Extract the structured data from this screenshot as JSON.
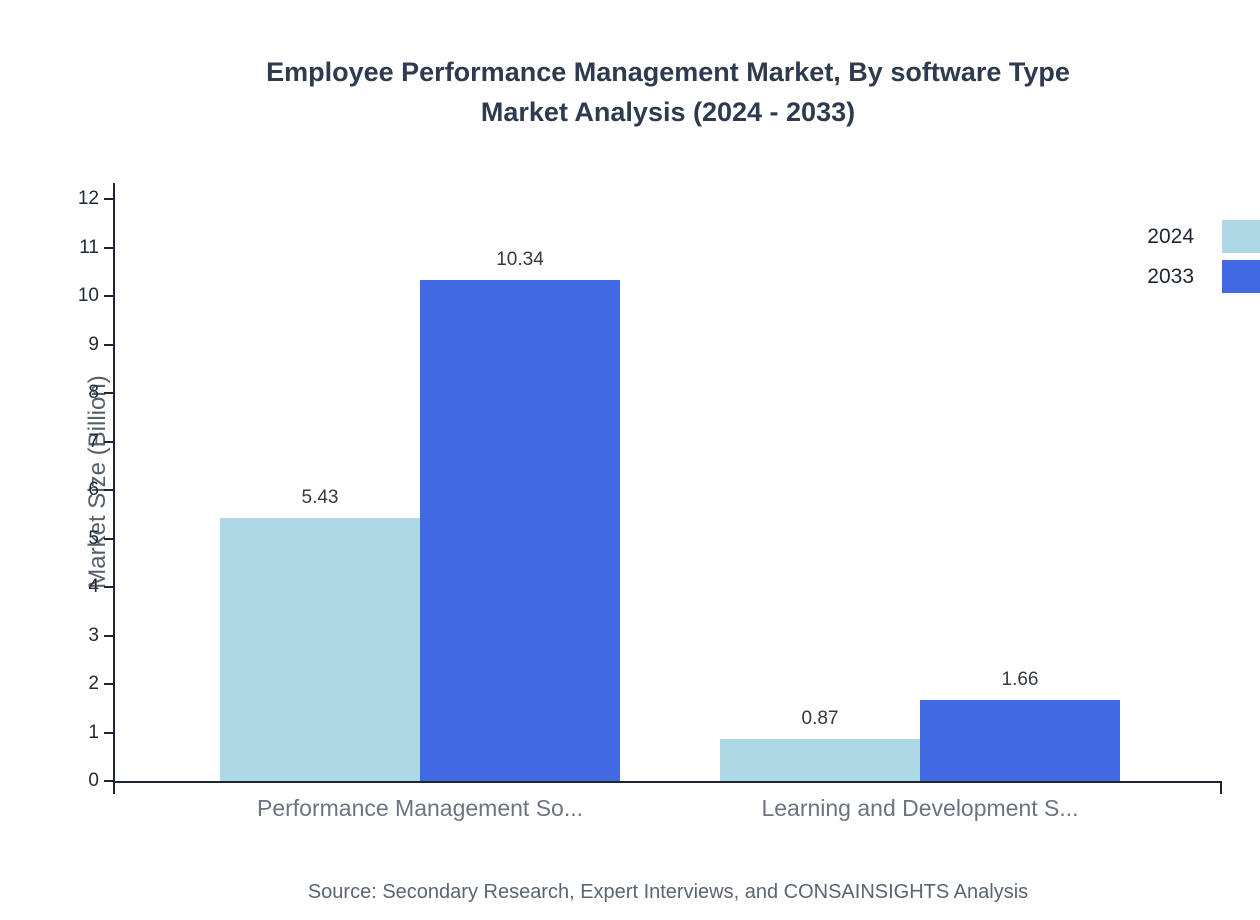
{
  "title": {
    "line1": "Employee Performance Management Market, By software Type",
    "line2": "Market Analysis (2024 - 2033)"
  },
  "chart_data": {
    "type": "bar",
    "categories": [
      "Performance Management So...",
      "Learning and Development S..."
    ],
    "series": [
      {
        "name": "2024",
        "color": "#add8e6",
        "values": [
          5.43,
          0.87
        ]
      },
      {
        "name": "2033",
        "color": "#4169e1",
        "values": [
          10.34,
          1.66
        ]
      }
    ],
    "ylabel": "Market Size (Billion)",
    "xlabel": "",
    "ylim": [
      0,
      12
    ],
    "ytick_step": 1,
    "grid": false,
    "legend_position": "top-right"
  },
  "footer": {
    "source": "Source: Secondary Research, Expert Interviews, and CONSAINSIGHTS Analysis"
  }
}
